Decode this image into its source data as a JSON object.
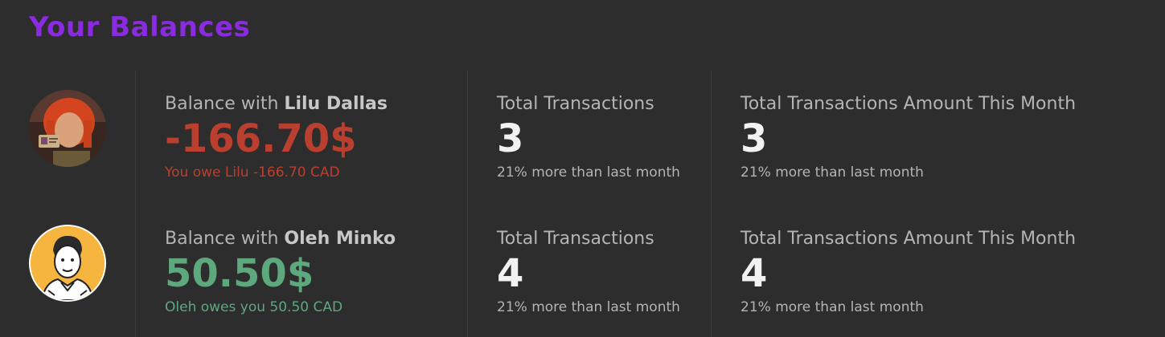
{
  "title": "Your Balances",
  "colors": {
    "accent": "#8a2be2",
    "negative": "#bb3f2f",
    "positive": "#5ea87d",
    "background": "#2d2d2d"
  },
  "balances": [
    {
      "label_prefix": "Balance with",
      "name": "Lilu Dallas",
      "amount": "-166.70$",
      "status": "You owe Lilu -166.70 CAD",
      "tone": "negative",
      "avatar_icon": "avatar-orange-hair",
      "transactions_label": "Total Transactions",
      "transactions_value": "3",
      "transactions_note": "21% more than last month",
      "month_label": "Total Transactions Amount This Month",
      "month_value": "3",
      "month_note": "21% more than last month"
    },
    {
      "label_prefix": "Balance with",
      "name": "Oleh Minko",
      "amount": "50.50$",
      "status": "Oleh owes you 50.50 CAD",
      "tone": "positive",
      "avatar_icon": "avatar-cartoon-man",
      "transactions_label": "Total Transactions",
      "transactions_value": "4",
      "transactions_note": "21% more than last month",
      "month_label": "Total Transactions Amount This Month",
      "month_value": "4",
      "month_note": "21% more than last month"
    }
  ]
}
